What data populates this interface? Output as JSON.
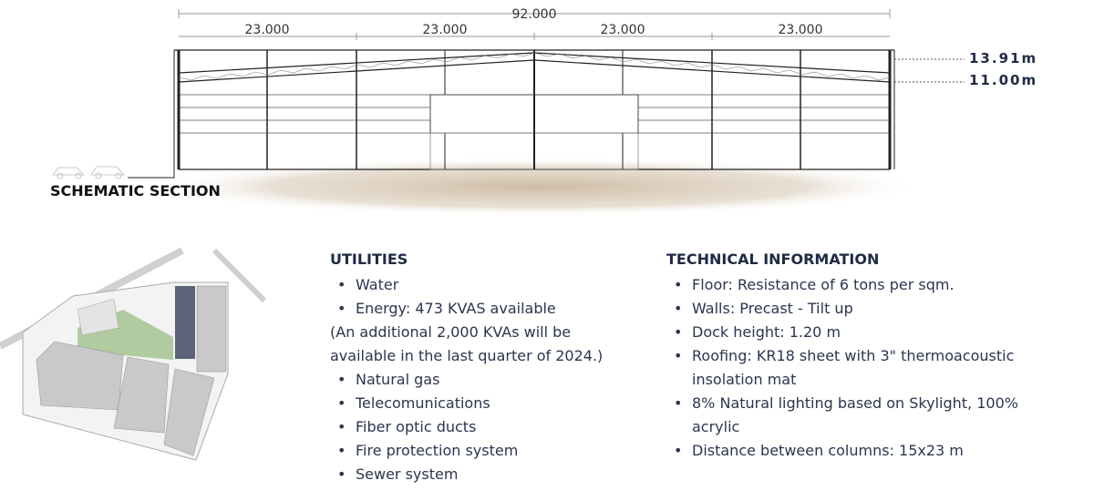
{
  "section": {
    "title": "SCHEMATIC SECTION",
    "total_span": "92.000",
    "bay_spans": [
      "23.000",
      "23.000",
      "23.000",
      "23.000"
    ],
    "heights": [
      "13.91m",
      "11.00m"
    ]
  },
  "utilities": {
    "heading": "UTILITIES",
    "items": [
      {
        "text": "Water",
        "bullet": true
      },
      {
        "text": "Energy: 473 KVAS available",
        "bullet": true
      },
      {
        "text": "(An additional 2,000 KVAs will be available in the last quarter of 2024.)",
        "bullet": false
      },
      {
        "text": "Natural gas",
        "bullet": true
      },
      {
        "text": "Telecomunications",
        "bullet": true
      },
      {
        "text": "Fiber optic ducts",
        "bullet": true
      },
      {
        "text": "Fire protection system",
        "bullet": true
      },
      {
        "text": "Sewer system",
        "bullet": true
      }
    ]
  },
  "technical": {
    "heading": "TECHNICAL INFORMATION",
    "items": [
      "Floor: Resistance of 6 tons per sqm.",
      "Walls: Precast - Tilt up",
      "Dock height: 1.20 m",
      "Roofing: KR18 sheet with 3\" thermoacoustic insolation mat",
      "8% Natural lighting based on Skylight, 100% acrylic",
      "Distance between columns: 15x23 m"
    ]
  },
  "colors": {
    "heading": "#1f2a44",
    "text": "#2b3550",
    "ground": "#d9cbb8",
    "plan_building": "#c9c9c9",
    "plan_highlight": "#5a6378",
    "plan_green": "#9fc08a"
  }
}
